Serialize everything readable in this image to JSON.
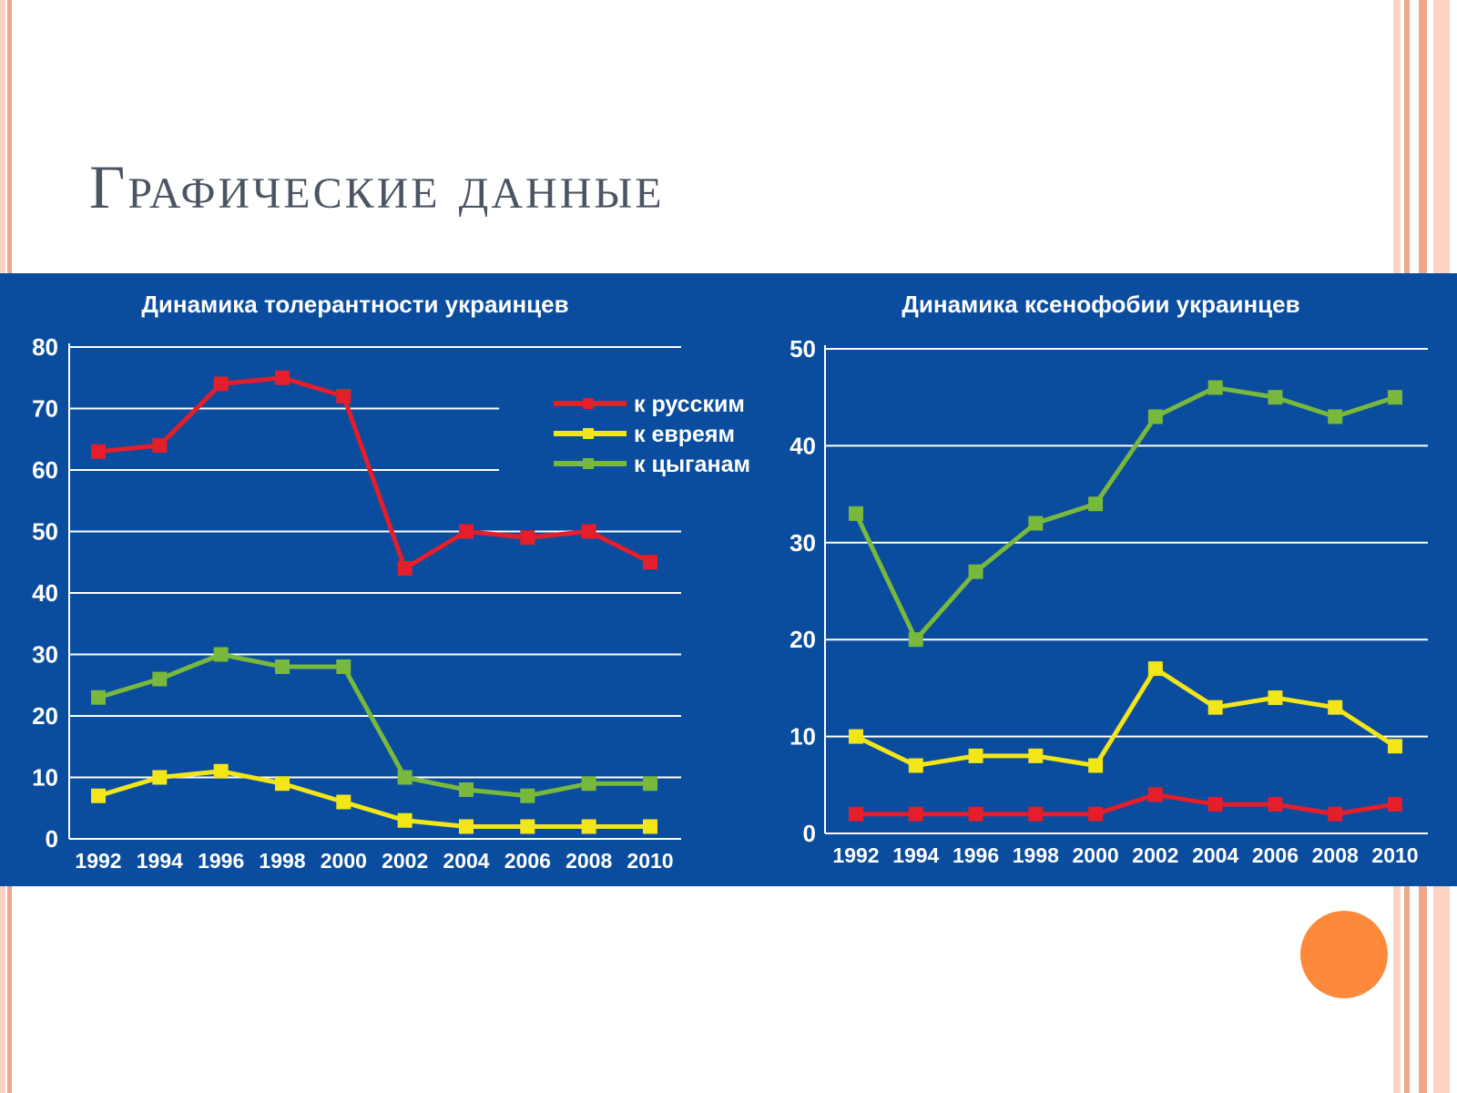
{
  "slide": {
    "title": "Графические данные",
    "colors": {
      "panel": "#0a4c9e",
      "accent_dot": "#fd8a3c",
      "stripe_dark": "#f0a88c",
      "stripe_light": "#fbd4c4"
    }
  },
  "chart_data": [
    {
      "type": "line",
      "title": "Динамика толерантности украинцев",
      "x": [
        1992,
        1994,
        1996,
        1998,
        2000,
        2002,
        2004,
        2006,
        2008,
        2010
      ],
      "ylim": [
        0,
        80
      ],
      "yticks": [
        0,
        10,
        20,
        30,
        40,
        50,
        60,
        70,
        80
      ],
      "grid": true,
      "legend": "top-right",
      "series": [
        {
          "name": "к русским",
          "color": "#e41e2a",
          "values": [
            63,
            64,
            74,
            75,
            72,
            44,
            50,
            49,
            50,
            45
          ]
        },
        {
          "name": "к евреям",
          "color": "#f2e619",
          "values": [
            7,
            10,
            11,
            9,
            6,
            3,
            2,
            2,
            2,
            2
          ]
        },
        {
          "name": "к цыганам",
          "color": "#78b83c",
          "values": [
            23,
            26,
            30,
            28,
            28,
            10,
            8,
            7,
            9,
            9
          ]
        }
      ]
    },
    {
      "type": "line",
      "title": "Динамика ксенофобии украинцев",
      "x": [
        1992,
        1994,
        1996,
        1998,
        2000,
        2002,
        2004,
        2006,
        2008,
        2010
      ],
      "ylim": [
        0,
        50
      ],
      "yticks": [
        0,
        10,
        20,
        30,
        40,
        50
      ],
      "grid": true,
      "series": [
        {
          "color": "#78b83c",
          "values": [
            33,
            20,
            27,
            32,
            34,
            43,
            46,
            45,
            43,
            45
          ]
        },
        {
          "color": "#f2e619",
          "values": [
            10,
            7,
            8,
            8,
            7,
            17,
            13,
            14,
            13,
            9
          ]
        },
        {
          "color": "#e41e2a",
          "values": [
            2,
            2,
            2,
            2,
            2,
            4,
            3,
            3,
            2,
            3
          ]
        }
      ]
    }
  ]
}
